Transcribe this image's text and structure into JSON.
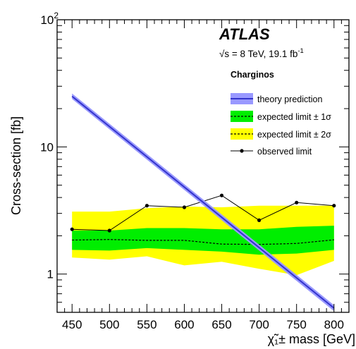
{
  "chart_data": {
    "type": "line",
    "experiment": "ATLAS",
    "energy_lumi": "√s = 8 TeV, 19.1 fb",
    "energy_lumi_sup": "-1",
    "legend_title": "Charginos",
    "xlabel": "χ̃₁± mass [GeV]",
    "ylabel": "Cross-section [fb]",
    "x_scale": "linear",
    "y_scale": "log",
    "xlim": [
      430,
      820
    ],
    "ylim": [
      0.5,
      100
    ],
    "x_ticks": [
      450,
      500,
      550,
      600,
      650,
      700,
      750,
      800
    ],
    "x_tick_labels": [
      "450",
      "500",
      "550",
      "600",
      "650",
      "700",
      "750",
      "800"
    ],
    "y_major_ticks": [
      1,
      10,
      100
    ],
    "y_tick_labels": [
      "1",
      "10",
      "10"
    ],
    "y_tick_label_sup": [
      "",
      "",
      "2"
    ],
    "legend_position": "top-right",
    "x": [
      450,
      500,
      550,
      600,
      650,
      700,
      750,
      800
    ],
    "series": [
      {
        "name": "theory prediction",
        "style": "band",
        "color": "#3333cc",
        "band_color": "#9999ff",
        "x": [
          450,
          800
        ],
        "values": [
          25,
          0.54
        ],
        "band_low": [
          23.8,
          0.51
        ],
        "band_high": [
          26.3,
          0.57
        ]
      },
      {
        "name": "expected limit ± 1σ",
        "style": "dashed-with-band",
        "color": "#000000",
        "band_color": "#00ee00",
        "values": [
          1.85,
          1.87,
          1.84,
          1.84,
          1.72,
          1.71,
          1.74,
          1.86
        ],
        "band_low": [
          1.55,
          1.53,
          1.6,
          1.55,
          1.5,
          1.42,
          1.45,
          1.55
        ],
        "band_high": [
          2.2,
          2.2,
          2.3,
          2.3,
          2.25,
          2.25,
          2.35,
          2.4
        ]
      },
      {
        "name": "expected limit ± 2σ",
        "style": "band",
        "color": "#000000",
        "band_color": "#ffff00",
        "values": [
          1.85,
          1.87,
          1.84,
          1.84,
          1.72,
          1.71,
          1.74,
          1.86
        ],
        "band_low": [
          1.35,
          1.3,
          1.38,
          1.17,
          1.25,
          1.1,
          0.98,
          1.27
        ],
        "band_high": [
          3.1,
          3.1,
          3.3,
          3.4,
          3.35,
          3.45,
          3.45,
          3.45
        ]
      },
      {
        "name": "observed limit",
        "style": "line-markers",
        "color": "#000000",
        "values": [
          2.25,
          2.2,
          3.45,
          3.35,
          4.15,
          2.65,
          3.65,
          3.45
        ]
      }
    ]
  }
}
